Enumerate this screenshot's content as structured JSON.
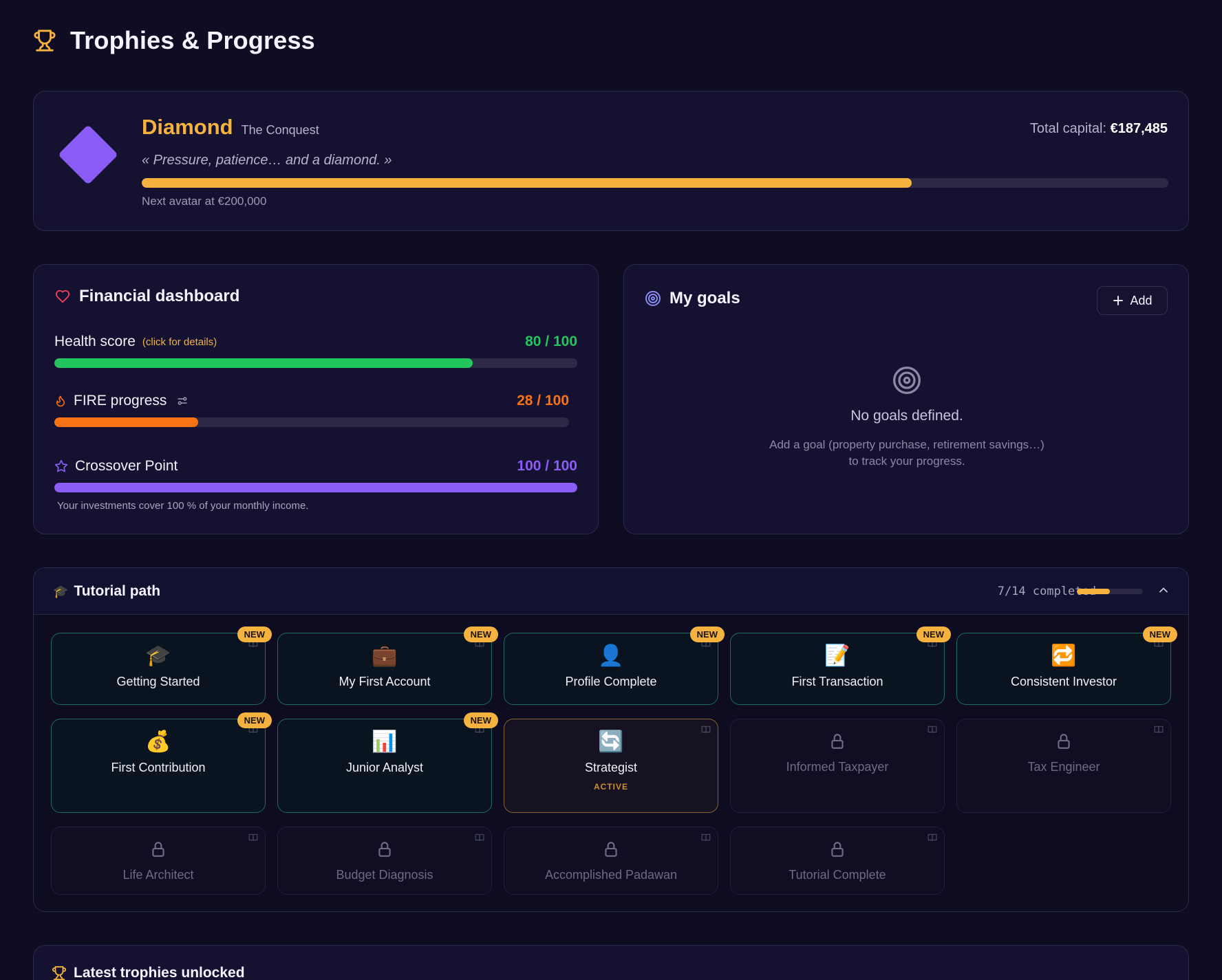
{
  "page": {
    "title": "Trophies & Progress"
  },
  "avatar": {
    "rank": "Diamond",
    "subtitle": "The Conquest",
    "quote": "« Pressure, patience… and a diamond. »",
    "capital_label": "Total capital:",
    "capital_value": "€187,485",
    "progress": 0.75,
    "next_label": "Next avatar at €200,000"
  },
  "dashboard": {
    "title": "Financial dashboard",
    "health": {
      "label": "Health score",
      "hint": "(click for details)",
      "value": "80 / 100",
      "progress": 0.8
    },
    "fire": {
      "label": "FIRE progress",
      "value": "28 / 100",
      "progress": 0.28
    },
    "crossover": {
      "label": "Crossover Point",
      "value": "100 / 100",
      "progress": 1.0
    },
    "note": "Your investments cover 100 % of your monthly income."
  },
  "goals": {
    "title": "My goals",
    "add_label": "Add",
    "empty_title": "No goals defined.",
    "empty_desc_1": "Add a goal (property purchase, retirement savings…)",
    "empty_desc_2": "to track your progress."
  },
  "tutorial": {
    "title": "Tutorial path",
    "progress_text": "7/14 completed",
    "progress": 0.5,
    "badge_new": "NEW",
    "steps": [
      {
        "label": "Getting Started",
        "icon": "🎓",
        "icon_name": "graduation-cap-icon",
        "state": "done",
        "is_new": true
      },
      {
        "label": "My First Account",
        "icon": "💼",
        "icon_name": "briefcase-icon",
        "state": "done",
        "is_new": true
      },
      {
        "label": "Profile Complete",
        "icon": "👤",
        "icon_name": "user-icon",
        "state": "done",
        "is_new": true
      },
      {
        "label": "First Transaction",
        "icon": "📝",
        "icon_name": "memo-icon",
        "state": "done",
        "is_new": true
      },
      {
        "label": "Consistent Investor",
        "icon": "🔁",
        "icon_name": "repeat-icon",
        "state": "done",
        "is_new": true
      },
      {
        "label": "First Contribution",
        "icon": "💰",
        "icon_name": "money-bag-icon",
        "state": "done",
        "is_new": true
      },
      {
        "label": "Junior Analyst",
        "icon": "📊",
        "icon_name": "bar-chart-icon",
        "state": "done",
        "is_new": true
      },
      {
        "label": "Strategist",
        "icon": "🔄",
        "icon_name": "refresh-icon",
        "state": "active",
        "status": "ACTIVE"
      },
      {
        "label": "Informed Taxpayer",
        "icon_name": "lock-icon",
        "state": "locked"
      },
      {
        "label": "Tax Engineer",
        "icon_name": "lock-icon",
        "state": "locked"
      },
      {
        "label": "Life Architect",
        "icon_name": "lock-icon",
        "state": "locked"
      },
      {
        "label": "Budget Diagnosis",
        "icon_name": "lock-icon",
        "state": "locked"
      },
      {
        "label": "Accomplished Padawan",
        "icon_name": "lock-icon",
        "state": "locked"
      },
      {
        "label": "Tutorial Complete",
        "icon_name": "lock-icon",
        "state": "locked"
      }
    ]
  },
  "latest": {
    "title": "Latest trophies unlocked"
  },
  "colors": {
    "accent_gold": "#f6b23e",
    "health_green": "#22c55e",
    "fire_orange": "#f97316",
    "crossover_purple": "#8b5cf6",
    "diamond_purple": "#8b5cf6"
  }
}
